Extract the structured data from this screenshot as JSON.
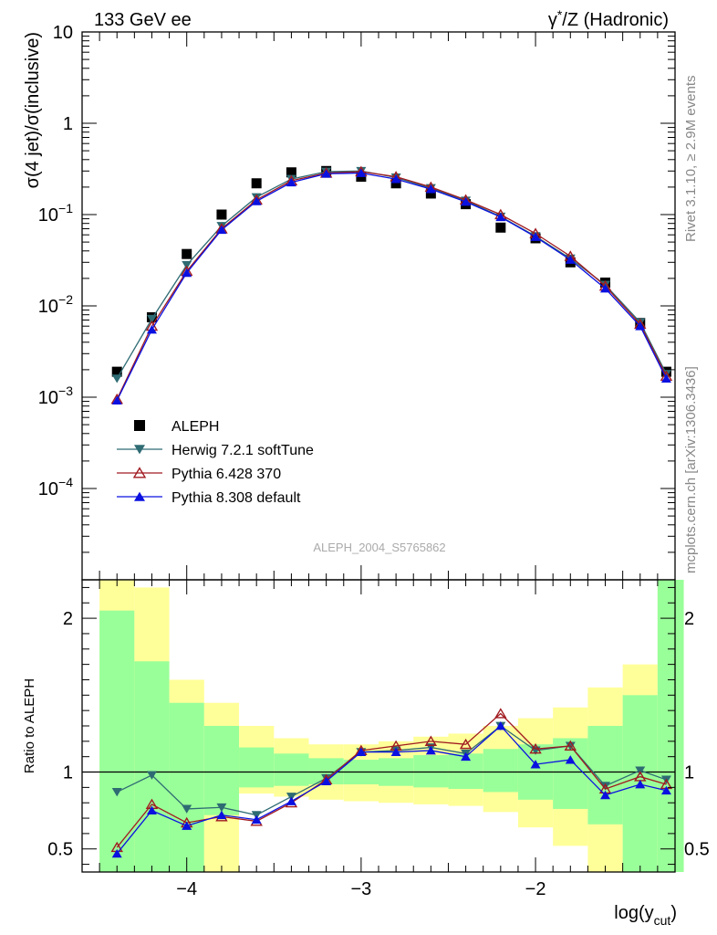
{
  "header": {
    "left": "133 GeV ee",
    "right_main": "γ",
    "right_sup": "*",
    "right_rest": "/Z (Hadronic)"
  },
  "side_labels": {
    "rivet": "Rivet 3.1.10, ≥ 2.9M events",
    "mcplots": "mcplots.cern.ch [arXiv:1306.3436]"
  },
  "watermark": "ALEPH_2004_S5765862",
  "chart_data": [
    {
      "id": "main",
      "type": "scatter",
      "ylabel": "σ(4 jet)/σ(inclusive)",
      "yscale": "log",
      "ylim": [
        1e-05,
        10
      ],
      "xlim": [
        -4.6,
        -1.2
      ],
      "ytick_labels": [
        "10",
        "1",
        "10^-1",
        "10^-2",
        "10^-3",
        "10^-4"
      ],
      "legend": {
        "placement": "lower-left",
        "entries": [
          {
            "label": "ALEPH",
            "marker": "square",
            "color": "#000000"
          },
          {
            "label": "Herwig 7.2.1 softTune",
            "marker": "triangle-down",
            "color": "#2e6b73"
          },
          {
            "label": "Pythia 6.428 370",
            "marker": "triangle-open",
            "color": "#a01a20"
          },
          {
            "label": "Pythia 8.308 default",
            "marker": "triangle-up",
            "color": "#0a10e0"
          }
        ]
      },
      "x": [
        -4.4,
        -4.2,
        -4.0,
        -3.8,
        -3.6,
        -3.4,
        -3.2,
        -3.0,
        -2.8,
        -2.6,
        -2.4,
        -2.2,
        -2.0,
        -1.8,
        -1.6,
        -1.4,
        -1.25
      ],
      "series": [
        {
          "name": "ALEPH",
          "values": [
            0.0019,
            0.0075,
            0.037,
            0.1,
            0.22,
            0.29,
            0.3,
            0.26,
            0.22,
            0.17,
            0.13,
            0.072,
            0.055,
            0.03,
            0.018,
            0.0065,
            0.0019
          ]
        },
        {
          "name": "Herwig 7.2.1 softTune",
          "values": [
            0.0016,
            0.0072,
            0.028,
            0.075,
            0.155,
            0.245,
            0.295,
            0.3,
            0.255,
            0.195,
            0.142,
            0.095,
            0.058,
            0.033,
            0.017,
            0.0066,
            0.0018
          ]
        },
        {
          "name": "Pythia 6.428 370",
          "values": [
            0.00095,
            0.006,
            0.024,
            0.07,
            0.145,
            0.235,
            0.285,
            0.295,
            0.26,
            0.2,
            0.145,
            0.1,
            0.062,
            0.035,
            0.0165,
            0.0063,
            0.0017
          ]
        },
        {
          "name": "Pythia 8.308 default",
          "values": [
            0.00092,
            0.0055,
            0.023,
            0.068,
            0.14,
            0.225,
            0.28,
            0.285,
            0.245,
            0.19,
            0.138,
            0.094,
            0.057,
            0.032,
            0.0155,
            0.006,
            0.0016
          ]
        }
      ]
    },
    {
      "id": "ratio",
      "type": "line",
      "ylabel": "Ratio to ALEPH",
      "xlabel": "log(y",
      "xlabel_sub": "cut",
      "xlabel_end": ")",
      "ylim": [
        0.35,
        2.25
      ],
      "xlim": [
        -4.6,
        -1.2
      ],
      "xticks": [
        -4,
        -3,
        -2
      ],
      "xtick_labels": [
        "−4",
        "−3",
        "−2"
      ],
      "yticks": [
        0.5,
        1,
        2
      ],
      "ytick_labels": [
        "0.5",
        "1",
        "2"
      ],
      "reference": 1,
      "bands": {
        "edges": [
          -4.5,
          -4.3,
          -4.1,
          -3.9,
          -3.7,
          -3.5,
          -3.3,
          -3.1,
          -2.9,
          -2.7,
          -2.5,
          -2.3,
          -2.1,
          -1.9,
          -1.7,
          -1.5,
          -1.3,
          -1.15
        ],
        "yellow_low": [
          0.35,
          0.35,
          0.35,
          0.35,
          0.86,
          0.84,
          0.82,
          0.81,
          0.8,
          0.79,
          0.78,
          0.74,
          0.64,
          0.52,
          0.35,
          0.35,
          0.35
        ],
        "yellow_high": [
          2.25,
          2.2,
          1.6,
          1.45,
          1.3,
          1.22,
          1.18,
          1.18,
          1.2,
          1.23,
          1.25,
          1.3,
          1.35,
          1.42,
          1.55,
          1.7,
          2.25
        ],
        "green_low": [
          0.35,
          0.35,
          0.35,
          0.72,
          0.9,
          0.91,
          0.92,
          0.92,
          0.91,
          0.9,
          0.89,
          0.87,
          0.82,
          0.76,
          0.66,
          0.35,
          0.35
        ],
        "green_high": [
          2.05,
          1.72,
          1.45,
          1.3,
          1.16,
          1.12,
          1.09,
          1.08,
          1.09,
          1.11,
          1.12,
          1.15,
          1.18,
          1.22,
          1.3,
          1.5,
          2.25
        ]
      },
      "series": [
        {
          "name": "Herwig 7.2.1 softTune",
          "values": [
            0.87,
            0.98,
            0.76,
            0.77,
            0.72,
            0.84,
            0.96,
            1.13,
            1.14,
            1.16,
            1.12,
            1.3,
            1.14,
            1.17,
            0.91,
            1.01,
            0.95
          ]
        },
        {
          "name": "Pythia 6.428 370",
          "values": [
            0.51,
            0.79,
            0.67,
            0.71,
            0.68,
            0.8,
            0.95,
            1.14,
            1.17,
            1.2,
            1.18,
            1.38,
            1.15,
            1.17,
            0.89,
            0.97,
            0.92
          ]
        },
        {
          "name": "Pythia 8.308 default",
          "values": [
            0.47,
            0.75,
            0.65,
            0.72,
            0.69,
            0.81,
            0.94,
            1.13,
            1.13,
            1.14,
            1.1,
            1.3,
            1.05,
            1.08,
            0.85,
            0.92,
            0.88
          ]
        }
      ]
    }
  ]
}
